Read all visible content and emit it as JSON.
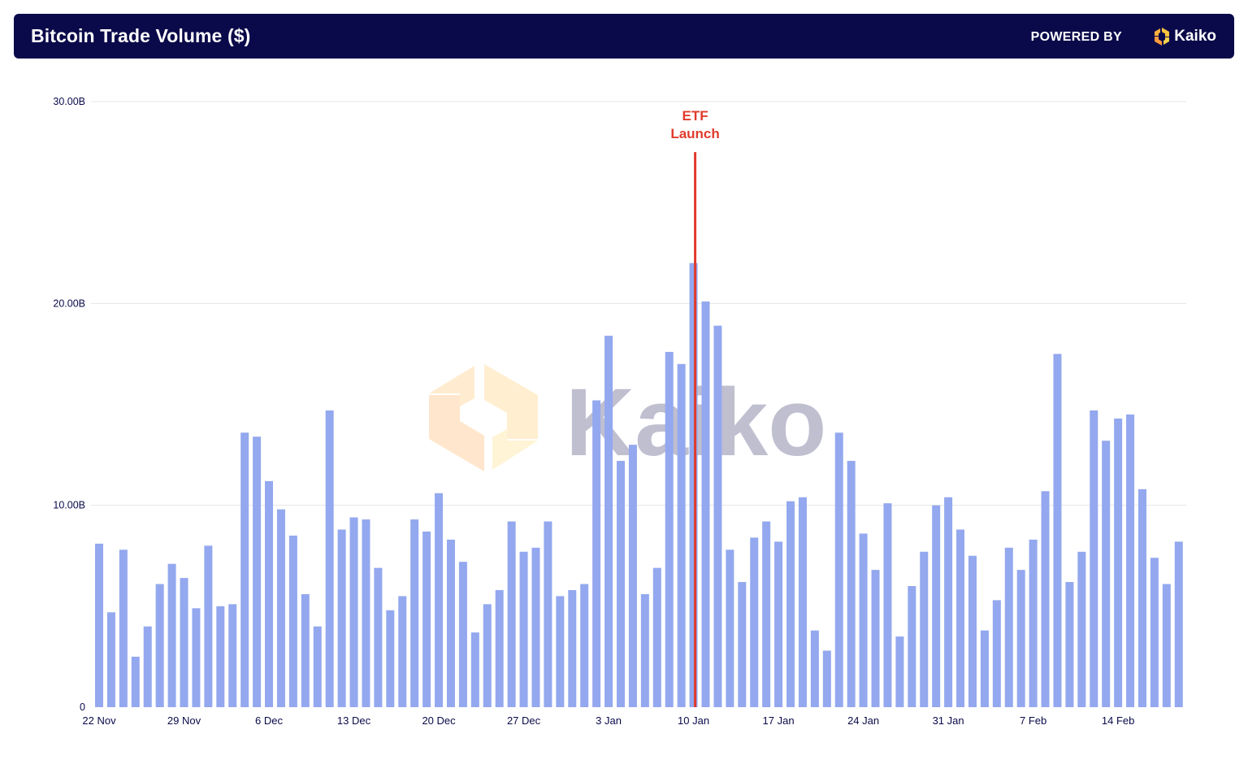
{
  "header": {
    "title": "Bitcoin Trade Volume ($)",
    "powered_by": "POWERED BY",
    "brand": "Kaiko",
    "brand_icon": "kaiko-logo-icon"
  },
  "watermark": {
    "text": "Kaiko"
  },
  "colors": {
    "bar": "#93a8ee",
    "marker": "#e03a2c",
    "header_bg": "#0a0a4a",
    "grid": "#e4e4e4",
    "axis_text": "#0a0a4a"
  },
  "chart_data": {
    "type": "bar",
    "title": "Bitcoin Trade Volume ($)",
    "xlabel": "",
    "ylabel": "",
    "ylim": [
      0,
      30
    ],
    "grid": true,
    "y_ticks": [
      {
        "value": 0,
        "label": "0"
      },
      {
        "value": 10,
        "label": "10.00B"
      },
      {
        "value": 20,
        "label": "20.00B"
      },
      {
        "value": 30,
        "label": "30.00B"
      }
    ],
    "x_ticks": [
      {
        "index": 0,
        "label": "22 Nov"
      },
      {
        "index": 7,
        "label": "29 Nov"
      },
      {
        "index": 14,
        "label": "6 Dec"
      },
      {
        "index": 21,
        "label": "13 Dec"
      },
      {
        "index": 28,
        "label": "20 Dec"
      },
      {
        "index": 35,
        "label": "27 Dec"
      },
      {
        "index": 42,
        "label": "3 Jan"
      },
      {
        "index": 49,
        "label": "10 Jan"
      },
      {
        "index": 56,
        "label": "17 Jan"
      },
      {
        "index": 63,
        "label": "24 Jan"
      },
      {
        "index": 70,
        "label": "31 Jan"
      },
      {
        "index": 77,
        "label": "7 Feb"
      },
      {
        "index": 84,
        "label": "14 Feb"
      }
    ],
    "values": [
      8.1,
      4.7,
      7.8,
      2.5,
      4.0,
      6.1,
      7.1,
      6.4,
      4.9,
      8.0,
      5.0,
      5.1,
      13.6,
      13.4,
      11.2,
      9.8,
      8.5,
      5.6,
      4.0,
      14.7,
      8.8,
      9.4,
      9.3,
      6.9,
      4.8,
      5.5,
      9.3,
      8.7,
      10.6,
      8.3,
      7.2,
      3.7,
      5.1,
      5.8,
      9.2,
      7.7,
      7.9,
      9.2,
      5.5,
      5.8,
      6.1,
      15.2,
      18.4,
      12.2,
      13.0,
      5.6,
      6.9,
      17.6,
      17.0,
      22.0,
      20.1,
      18.9,
      7.8,
      6.2,
      8.4,
      9.2,
      8.2,
      10.2,
      10.4,
      3.8,
      2.8,
      13.6,
      12.2,
      8.6,
      6.8,
      10.1,
      3.5,
      6.0,
      7.7,
      10.0,
      10.4,
      8.8,
      7.5,
      3.8,
      5.3,
      7.9,
      6.8,
      8.3,
      10.7,
      17.5,
      6.2,
      7.7,
      14.7,
      13.2,
      14.3,
      14.5,
      10.8,
      7.4,
      6.1,
      8.2
    ],
    "annotations": [
      {
        "index": 49,
        "line1": "ETF",
        "line2": "Launch",
        "top_value": 27.5
      }
    ]
  }
}
